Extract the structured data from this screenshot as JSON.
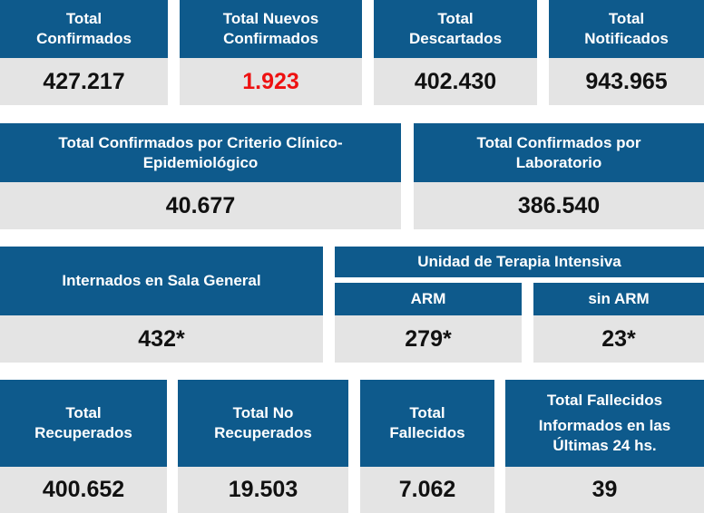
{
  "row1": [
    {
      "label_lines": [
        "Total",
        "Confirmados"
      ],
      "value": "427.217"
    },
    {
      "label_lines": [
        "Total Nuevos",
        "Confirmados"
      ],
      "value": "1.923"
    },
    {
      "label_lines": [
        "Total",
        "Descartados"
      ],
      "value": "402.430"
    },
    {
      "label_lines": [
        "Total",
        "Notificados"
      ],
      "value": "943.965"
    }
  ],
  "row2": [
    {
      "label_lines": [
        "Total Confirmados por Criterio Clínico-",
        "Epidemiológico"
      ],
      "value": "40.677"
    },
    {
      "label_lines": [
        "Total Confirmados por",
        "Laboratorio"
      ],
      "value": "386.540"
    }
  ],
  "row3": {
    "sala_general": {
      "label": "Internados en Sala General",
      "value": "432*"
    },
    "uti": {
      "title": "Unidad de Terapia Intensiva",
      "arm": {
        "label": "ARM",
        "value": "279*"
      },
      "sin_arm": {
        "label": "sin ARM",
        "value": "23*"
      }
    }
  },
  "row4": [
    {
      "label_lines": [
        "Total",
        "Recuperados"
      ],
      "value": "400.652"
    },
    {
      "label_lines": [
        "Total No",
        "Recuperados"
      ],
      "value": "19.503"
    },
    {
      "label_lines": [
        "Total",
        "Fallecidos"
      ],
      "value": "7.062"
    },
    {
      "label_lines": [
        "Total Fallecidos",
        "Informados en las",
        "Últimas 24 hs."
      ],
      "value": "39"
    }
  ],
  "colors": {
    "header_bg": "#0e5a8c",
    "value_bg": "#e4e4e4",
    "highlight": "#ee1111"
  }
}
